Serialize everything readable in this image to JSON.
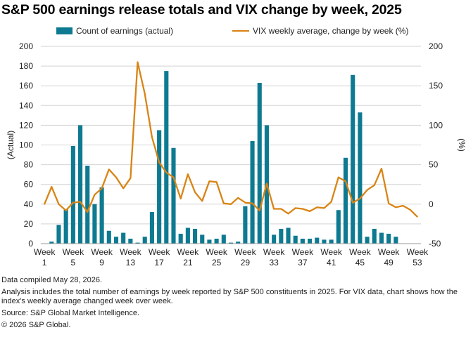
{
  "title": "S&P 500 earnings release totals and VIX change by week, 2025",
  "colors": {
    "bars": "#0e7a91",
    "line": "#d98414",
    "grid": "#d3d3d3"
  },
  "chart_data": {
    "type": "bar",
    "title": "S&P 500 earnings release totals and VIX change by week, 2025",
    "x": [
      1,
      2,
      3,
      4,
      5,
      6,
      7,
      8,
      9,
      10,
      11,
      12,
      13,
      14,
      15,
      16,
      17,
      18,
      19,
      20,
      21,
      22,
      23,
      24,
      25,
      26,
      27,
      28,
      29,
      30,
      31,
      32,
      33,
      34,
      35,
      36,
      37,
      38,
      39,
      40,
      41,
      42,
      43,
      44,
      45,
      46,
      47,
      48,
      49,
      50,
      51,
      52,
      53
    ],
    "x_tick_prefix": "Week",
    "x_ticks": [
      1,
      5,
      9,
      13,
      17,
      21,
      25,
      29,
      33,
      37,
      41,
      45,
      49,
      53
    ],
    "left_axis": {
      "label": "(Actual)",
      "ylim": [
        0,
        200
      ],
      "ticks": [
        0,
        20,
        40,
        60,
        80,
        100,
        120,
        140,
        160,
        180,
        200
      ]
    },
    "right_axis": {
      "label": "(%)",
      "ylim": [
        -50,
        200
      ],
      "ticks": [
        -50,
        0,
        50,
        100,
        150,
        200
      ]
    },
    "grid": true,
    "legend": "top",
    "series": [
      {
        "name": "Count of earnings (actual)",
        "type": "bar",
        "axis": "left",
        "values": [
          0,
          2,
          19,
          35,
          99,
          120,
          79,
          40,
          57,
          13,
          7,
          11,
          5,
          1,
          7,
          32,
          115,
          175,
          97,
          10,
          16,
          15,
          9,
          4,
          5,
          9,
          1,
          2,
          38,
          104,
          163,
          120,
          9,
          15,
          16,
          8,
          5,
          5,
          6,
          4,
          4,
          34,
          87,
          171,
          133,
          7,
          15,
          11,
          10,
          7,
          0,
          0,
          0
        ]
      },
      {
        "name": "VIX weekly average, change by week (%)",
        "type": "line",
        "axis": "right",
        "values": [
          0,
          22,
          0,
          -8,
          2,
          3,
          -10,
          12,
          20,
          44,
          34,
          20,
          33,
          180,
          140,
          85,
          53,
          40,
          34,
          7,
          38,
          15,
          4,
          29,
          28,
          1,
          0,
          8,
          2,
          1,
          -8,
          26,
          -6,
          -6,
          -12,
          -5,
          -6,
          -9,
          -4,
          -5,
          3,
          34,
          29,
          2,
          7,
          18,
          24,
          45,
          1,
          -4,
          -2,
          -7,
          -16
        ]
      }
    ]
  },
  "footnotes": {
    "compiled": "Data compiled May 28, 2026.",
    "analysis": "Analysis includes the total number of earnings by week reported by S&P 500 constituents in 2025. For VIX data, chart shows how the index's weekly average changed week over week.",
    "source": "Source: S&P Global Market Intelligence.",
    "copyright": "© 2026 S&P Global."
  }
}
